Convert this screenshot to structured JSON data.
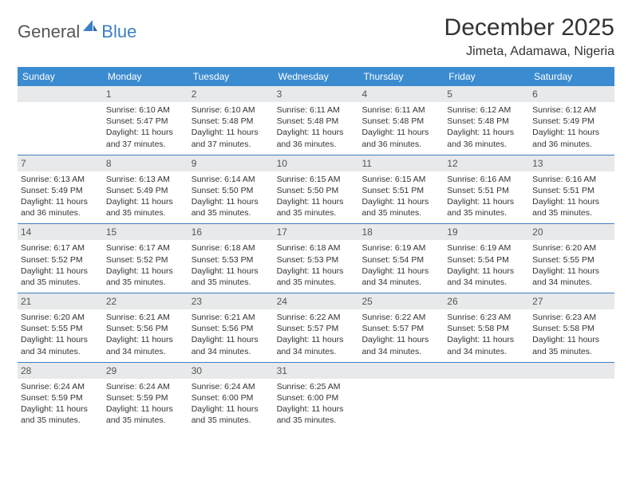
{
  "brand": {
    "part1": "General",
    "part2": "Blue"
  },
  "header": {
    "month_title": "December 2025",
    "location": "Jimeta, Adamawa, Nigeria"
  },
  "colors": {
    "header_bar": "#3b8bd0",
    "header_text": "#ffffff",
    "daynum_bg": "#e8e9ea",
    "border": "#3b7fc4",
    "body_text": "#333333",
    "brand_gray": "#555555",
    "brand_blue": "#3b7fc4"
  },
  "weekdays": [
    "Sunday",
    "Monday",
    "Tuesday",
    "Wednesday",
    "Thursday",
    "Friday",
    "Saturday"
  ],
  "weeks": [
    [
      {
        "n": "",
        "sr": "",
        "ss": "",
        "dl": ""
      },
      {
        "n": "1",
        "sr": "Sunrise: 6:10 AM",
        "ss": "Sunset: 5:47 PM",
        "dl": "Daylight: 11 hours and 37 minutes."
      },
      {
        "n": "2",
        "sr": "Sunrise: 6:10 AM",
        "ss": "Sunset: 5:48 PM",
        "dl": "Daylight: 11 hours and 37 minutes."
      },
      {
        "n": "3",
        "sr": "Sunrise: 6:11 AM",
        "ss": "Sunset: 5:48 PM",
        "dl": "Daylight: 11 hours and 36 minutes."
      },
      {
        "n": "4",
        "sr": "Sunrise: 6:11 AM",
        "ss": "Sunset: 5:48 PM",
        "dl": "Daylight: 11 hours and 36 minutes."
      },
      {
        "n": "5",
        "sr": "Sunrise: 6:12 AM",
        "ss": "Sunset: 5:48 PM",
        "dl": "Daylight: 11 hours and 36 minutes."
      },
      {
        "n": "6",
        "sr": "Sunrise: 6:12 AM",
        "ss": "Sunset: 5:49 PM",
        "dl": "Daylight: 11 hours and 36 minutes."
      }
    ],
    [
      {
        "n": "7",
        "sr": "Sunrise: 6:13 AM",
        "ss": "Sunset: 5:49 PM",
        "dl": "Daylight: 11 hours and 36 minutes."
      },
      {
        "n": "8",
        "sr": "Sunrise: 6:13 AM",
        "ss": "Sunset: 5:49 PM",
        "dl": "Daylight: 11 hours and 35 minutes."
      },
      {
        "n": "9",
        "sr": "Sunrise: 6:14 AM",
        "ss": "Sunset: 5:50 PM",
        "dl": "Daylight: 11 hours and 35 minutes."
      },
      {
        "n": "10",
        "sr": "Sunrise: 6:15 AM",
        "ss": "Sunset: 5:50 PM",
        "dl": "Daylight: 11 hours and 35 minutes."
      },
      {
        "n": "11",
        "sr": "Sunrise: 6:15 AM",
        "ss": "Sunset: 5:51 PM",
        "dl": "Daylight: 11 hours and 35 minutes."
      },
      {
        "n": "12",
        "sr": "Sunrise: 6:16 AM",
        "ss": "Sunset: 5:51 PM",
        "dl": "Daylight: 11 hours and 35 minutes."
      },
      {
        "n": "13",
        "sr": "Sunrise: 6:16 AM",
        "ss": "Sunset: 5:51 PM",
        "dl": "Daylight: 11 hours and 35 minutes."
      }
    ],
    [
      {
        "n": "14",
        "sr": "Sunrise: 6:17 AM",
        "ss": "Sunset: 5:52 PM",
        "dl": "Daylight: 11 hours and 35 minutes."
      },
      {
        "n": "15",
        "sr": "Sunrise: 6:17 AM",
        "ss": "Sunset: 5:52 PM",
        "dl": "Daylight: 11 hours and 35 minutes."
      },
      {
        "n": "16",
        "sr": "Sunrise: 6:18 AM",
        "ss": "Sunset: 5:53 PM",
        "dl": "Daylight: 11 hours and 35 minutes."
      },
      {
        "n": "17",
        "sr": "Sunrise: 6:18 AM",
        "ss": "Sunset: 5:53 PM",
        "dl": "Daylight: 11 hours and 35 minutes."
      },
      {
        "n": "18",
        "sr": "Sunrise: 6:19 AM",
        "ss": "Sunset: 5:54 PM",
        "dl": "Daylight: 11 hours and 34 minutes."
      },
      {
        "n": "19",
        "sr": "Sunrise: 6:19 AM",
        "ss": "Sunset: 5:54 PM",
        "dl": "Daylight: 11 hours and 34 minutes."
      },
      {
        "n": "20",
        "sr": "Sunrise: 6:20 AM",
        "ss": "Sunset: 5:55 PM",
        "dl": "Daylight: 11 hours and 34 minutes."
      }
    ],
    [
      {
        "n": "21",
        "sr": "Sunrise: 6:20 AM",
        "ss": "Sunset: 5:55 PM",
        "dl": "Daylight: 11 hours and 34 minutes."
      },
      {
        "n": "22",
        "sr": "Sunrise: 6:21 AM",
        "ss": "Sunset: 5:56 PM",
        "dl": "Daylight: 11 hours and 34 minutes."
      },
      {
        "n": "23",
        "sr": "Sunrise: 6:21 AM",
        "ss": "Sunset: 5:56 PM",
        "dl": "Daylight: 11 hours and 34 minutes."
      },
      {
        "n": "24",
        "sr": "Sunrise: 6:22 AM",
        "ss": "Sunset: 5:57 PM",
        "dl": "Daylight: 11 hours and 34 minutes."
      },
      {
        "n": "25",
        "sr": "Sunrise: 6:22 AM",
        "ss": "Sunset: 5:57 PM",
        "dl": "Daylight: 11 hours and 34 minutes."
      },
      {
        "n": "26",
        "sr": "Sunrise: 6:23 AM",
        "ss": "Sunset: 5:58 PM",
        "dl": "Daylight: 11 hours and 34 minutes."
      },
      {
        "n": "27",
        "sr": "Sunrise: 6:23 AM",
        "ss": "Sunset: 5:58 PM",
        "dl": "Daylight: 11 hours and 35 minutes."
      }
    ],
    [
      {
        "n": "28",
        "sr": "Sunrise: 6:24 AM",
        "ss": "Sunset: 5:59 PM",
        "dl": "Daylight: 11 hours and 35 minutes."
      },
      {
        "n": "29",
        "sr": "Sunrise: 6:24 AM",
        "ss": "Sunset: 5:59 PM",
        "dl": "Daylight: 11 hours and 35 minutes."
      },
      {
        "n": "30",
        "sr": "Sunrise: 6:24 AM",
        "ss": "Sunset: 6:00 PM",
        "dl": "Daylight: 11 hours and 35 minutes."
      },
      {
        "n": "31",
        "sr": "Sunrise: 6:25 AM",
        "ss": "Sunset: 6:00 PM",
        "dl": "Daylight: 11 hours and 35 minutes."
      },
      {
        "n": "",
        "sr": "",
        "ss": "",
        "dl": ""
      },
      {
        "n": "",
        "sr": "",
        "ss": "",
        "dl": ""
      },
      {
        "n": "",
        "sr": "",
        "ss": "",
        "dl": ""
      }
    ]
  ]
}
